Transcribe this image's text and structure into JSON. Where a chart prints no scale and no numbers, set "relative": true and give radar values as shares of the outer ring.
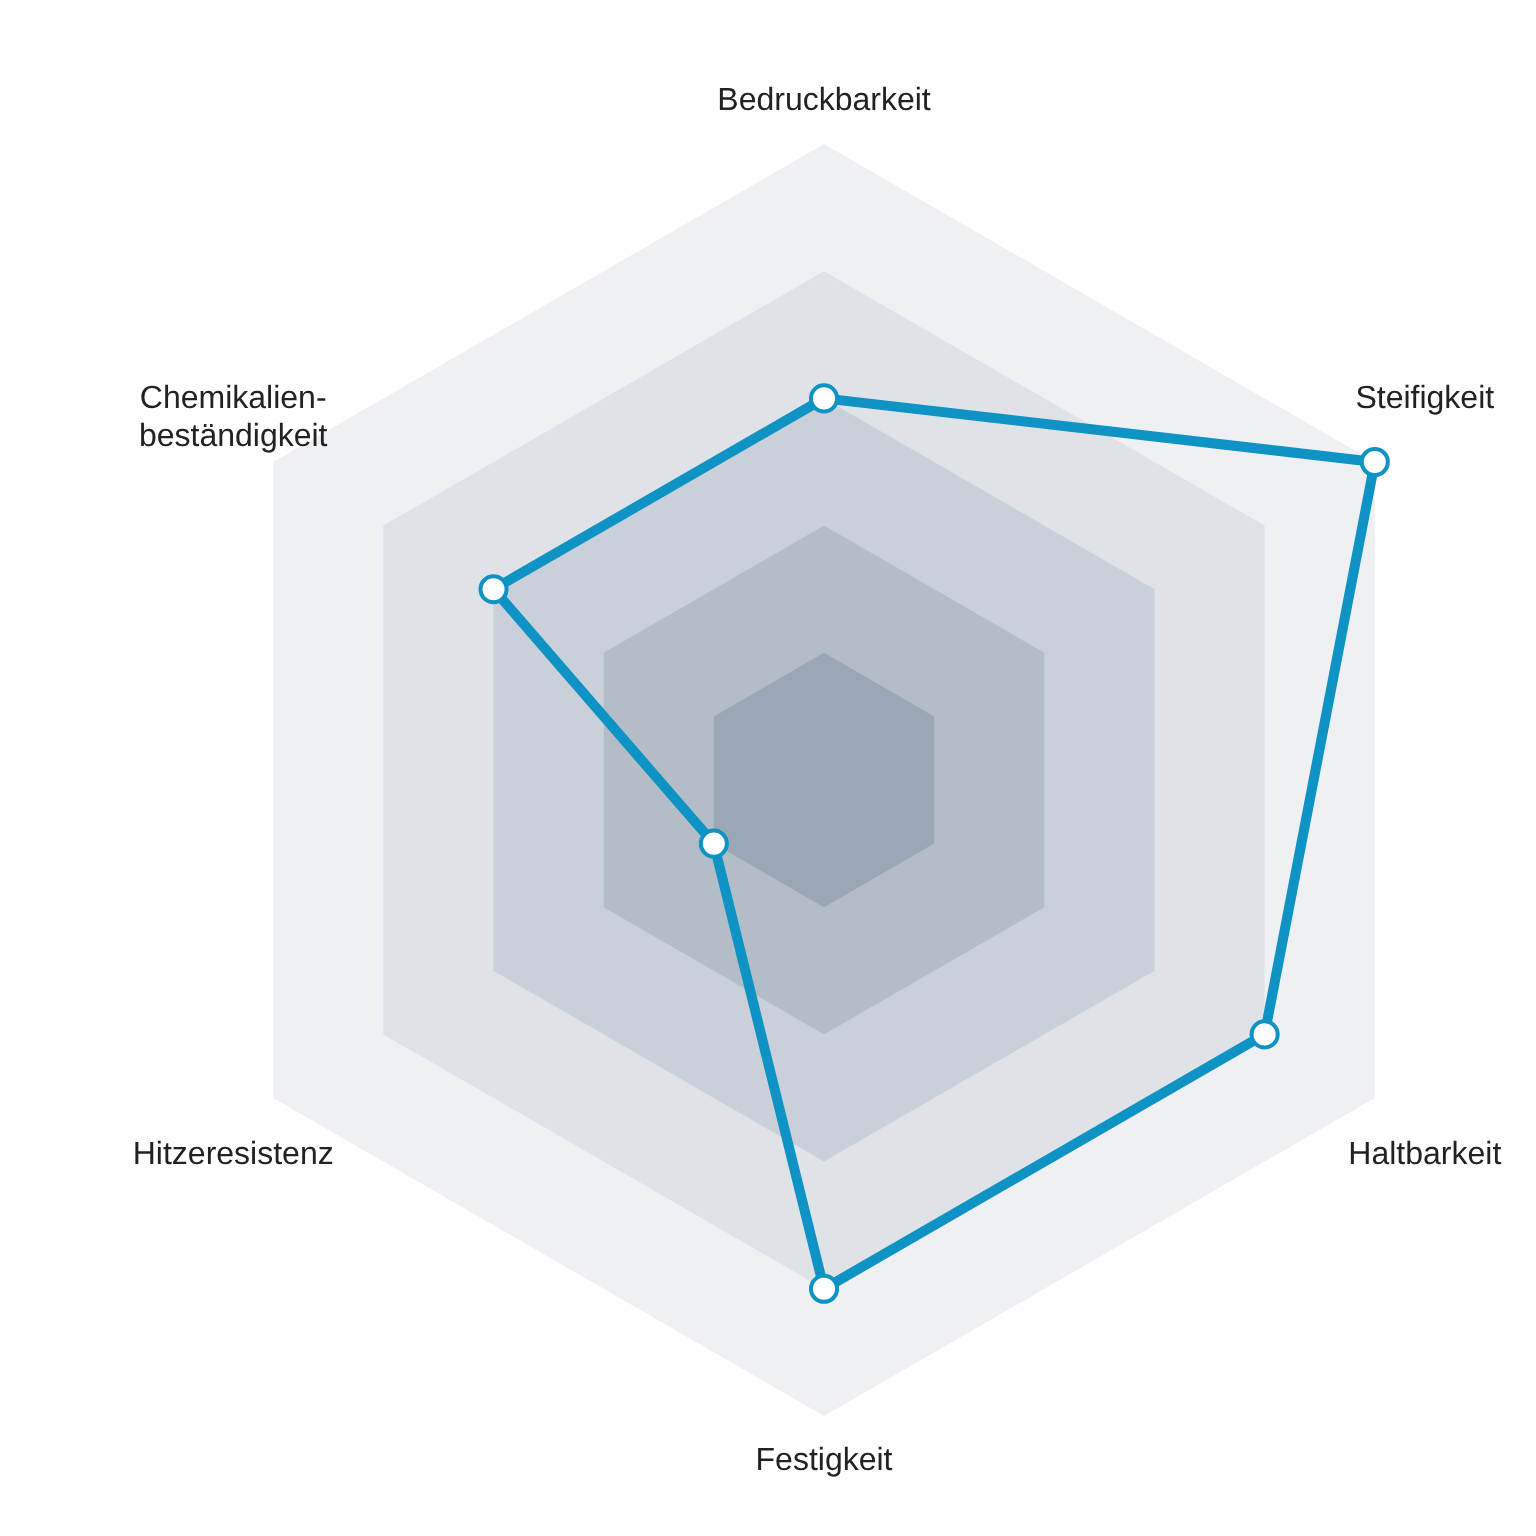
{
  "chart_data": {
    "type": "radar",
    "relative": true,
    "grid": true,
    "marker": "circle",
    "line_style": "solid",
    "categories": [
      "Bedruckbarkeit",
      "Steifigkeit",
      "Haltbarkeit",
      "Festigkeit",
      "Hitzeresistenz",
      "Chemikalien-beständigkeit"
    ],
    "series": [
      {
        "color": "#0e93c4",
        "values": [
          0.6,
          1.0,
          0.8,
          0.8,
          0.2,
          0.6
        ]
      }
    ]
  }
}
